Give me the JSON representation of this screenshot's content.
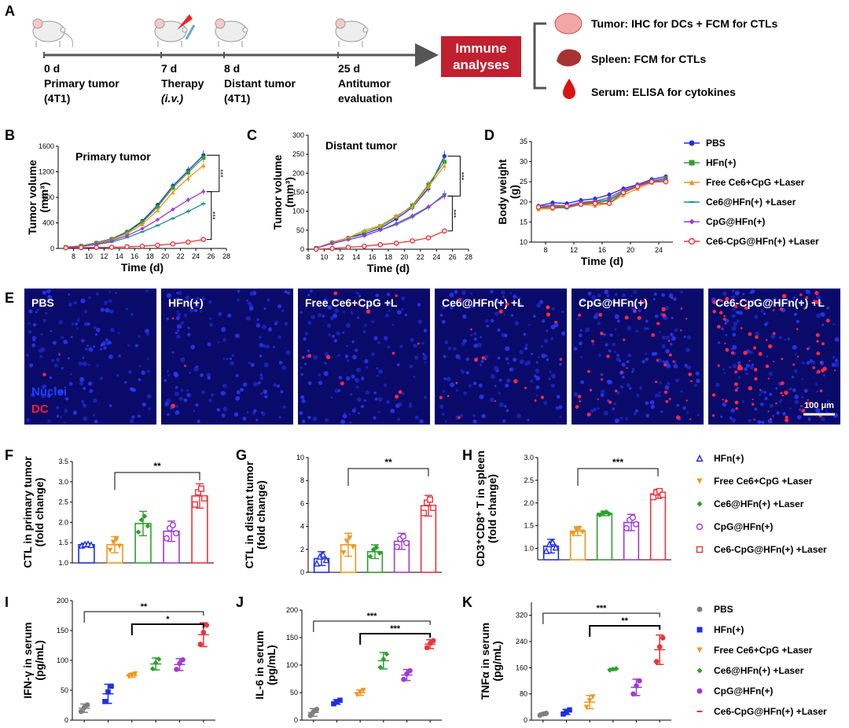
{
  "panels": {
    "A": "A",
    "B": "B",
    "C": "C",
    "D": "D",
    "E": "E",
    "F": "F",
    "G": "G",
    "H": "H",
    "I": "I",
    "J": "J",
    "K": "K"
  },
  "timeline": {
    "points": [
      {
        "day": "0 d",
        "line1": "Primary tumor",
        "line2": "(4T1)"
      },
      {
        "day": "7 d",
        "line1": "Therapy",
        "line2": "(i.v.)"
      },
      {
        "day": "8 d",
        "line1": "Distant tumor",
        "line2": "(4T1)"
      },
      {
        "day": "25 d",
        "line1": "Antitumor",
        "line2": "evaluation"
      }
    ],
    "box_line1": "Immune",
    "box_line2": "analyses",
    "box_color": "#c0202f",
    "analyses": [
      {
        "organ": "tumor",
        "text": "Tumor: IHC for DCs + FCM for CTLs"
      },
      {
        "organ": "spleen",
        "text": "Spleen: FCM for CTLs"
      },
      {
        "organ": "serum",
        "text": "Serum: ELISA for cytokines"
      }
    ]
  },
  "legend_top": [
    {
      "label": "PBS",
      "color": "#1f2ee0",
      "marker": "circle"
    },
    {
      "label": "HFn(+)",
      "color": "#2ca02c",
      "marker": "square"
    },
    {
      "label": "Free Ce6+CpG +Laser",
      "color": "#f0961e",
      "marker": "triangle"
    },
    {
      "label": "Ce6@HFn(+) +Laser",
      "color": "#1f8f8f",
      "marker": "dash"
    },
    {
      "label": "CpG@HFn(+)",
      "color": "#a03ad4",
      "marker": "diamond"
    },
    {
      "label": "Ce6-CpG@HFn(+) +Laser",
      "color": "#e8343c",
      "marker": "open-circle"
    }
  ],
  "microscopy": {
    "labels": [
      "PBS",
      "HFn(+)",
      "Free Ce6+CpG +L",
      "Ce6@HFn(+) +L",
      "CpG@HFn(+)",
      "Ce6-CpG@HFn(+) +L"
    ],
    "stain1": "Nuclei",
    "stain2": "DC",
    "scale": "100 μm"
  },
  "legend_fgh": [
    {
      "label": "HFn(+)",
      "color": "#1f2ee0",
      "marker": "open-triangle"
    },
    {
      "label": "Free Ce6+CpG +Laser",
      "color": "#f0961e",
      "marker": "down-triangle"
    },
    {
      "label": "Ce6@HFn(+) +Laser",
      "color": "#2ca02c",
      "marker": "diamond"
    },
    {
      "label": "CpG@HFn(+)",
      "color": "#a03ad4",
      "marker": "open-circle"
    },
    {
      "label": "Ce6-CpG@HFn(+) +Laser",
      "color": "#e8343c",
      "marker": "open-square"
    }
  ],
  "legend_ijk": [
    {
      "label": "PBS",
      "color": "#7f7f7f",
      "marker": "dot"
    },
    {
      "label": "HFn(+)",
      "color": "#1f2ee0",
      "marker": "square"
    },
    {
      "label": "Free Ce6+CpG +Laser",
      "color": "#f0961e",
      "marker": "down-triangle"
    },
    {
      "label": "Ce6@HFn(+) +Laser",
      "color": "#2ca02c",
      "marker": "diamond"
    },
    {
      "label": "CpG@HFn(+)",
      "color": "#a03ad4",
      "marker": "dot"
    },
    {
      "label": "Ce6-CpG@HFn(+) +Laser",
      "color": "#e8343c",
      "marker": "dash"
    }
  ],
  "chart_data": [
    {
      "id": "B",
      "type": "line",
      "title": "Primary tumor",
      "xlabel": "Time (d)",
      "ylabel": "Tumor volume (mm³)",
      "xlim": [
        6,
        28
      ],
      "ylim": [
        0,
        1600
      ],
      "xticks": [
        8,
        10,
        12,
        14,
        16,
        18,
        20,
        22,
        24,
        26,
        28
      ],
      "yticks": [
        0,
        400,
        800,
        1200,
        1600
      ],
      "x": [
        7,
        9,
        11,
        13,
        15,
        17,
        19,
        21,
        23,
        25
      ],
      "series": [
        {
          "name": "PBS",
          "values": [
            20,
            40,
            90,
            150,
            260,
            430,
            680,
            980,
            1220,
            1460
          ]
        },
        {
          "name": "HFn(+)",
          "values": [
            20,
            38,
            85,
            145,
            250,
            410,
            650,
            950,
            1190,
            1420
          ]
        },
        {
          "name": "Free Ce6+CpG +Laser",
          "values": [
            20,
            36,
            80,
            135,
            230,
            380,
            600,
            880,
            1100,
            1300
          ]
        },
        {
          "name": "Ce6@HFn(+) +Laser",
          "values": [
            18,
            30,
            60,
            100,
            170,
            260,
            360,
            470,
            580,
            700
          ]
        },
        {
          "name": "CpG@HFn(+)",
          "values": [
            18,
            32,
            70,
            120,
            200,
            310,
            450,
            610,
            760,
            890
          ]
        },
        {
          "name": "Ce6-CpG@HFn(+) +Laser",
          "values": [
            10,
            12,
            15,
            18,
            25,
            35,
            50,
            70,
            100,
            140
          ]
        }
      ],
      "significance": [
        "***",
        "***"
      ]
    },
    {
      "id": "C",
      "type": "line",
      "title": "Distant tumor",
      "xlabel": "Time (d)",
      "ylabel": "Tumor volume (mm³)",
      "xlim": [
        8,
        28
      ],
      "ylim": [
        0,
        300
      ],
      "xticks": [
        8,
        10,
        12,
        14,
        16,
        18,
        20,
        22,
        24,
        26,
        28
      ],
      "yticks": [
        0,
        50,
        100,
        150,
        200,
        250,
        300
      ],
      "x": [
        9,
        11,
        13,
        15,
        17,
        19,
        21,
        23,
        25
      ],
      "series": [
        {
          "name": "PBS",
          "values": [
            3,
            18,
            30,
            40,
            55,
            80,
            110,
            160,
            245
          ]
        },
        {
          "name": "HFn(+)",
          "values": [
            3,
            17,
            29,
            45,
            60,
            85,
            115,
            170,
            230
          ]
        },
        {
          "name": "Free Ce6+CpG +Laser",
          "values": [
            3,
            17,
            30,
            50,
            62,
            88,
            112,
            165,
            220
          ]
        },
        {
          "name": "Ce6@HFn(+) +Laser",
          "values": [
            3,
            15,
            25,
            35,
            50,
            65,
            85,
            110,
            145
          ]
        },
        {
          "name": "CpG@HFn(+)",
          "values": [
            3,
            15,
            25,
            35,
            50,
            68,
            88,
            112,
            140
          ]
        },
        {
          "name": "Ce6-CpG@HFn(+) +Laser",
          "values": [
            0,
            2,
            5,
            8,
            12,
            16,
            22,
            30,
            48
          ]
        }
      ],
      "significance": [
        "***",
        "***"
      ]
    },
    {
      "id": "D",
      "type": "line",
      "xlabel": "Time (d)",
      "ylabel": "Body weight (g)",
      "xlim": [
        6,
        26
      ],
      "ylim": [
        10,
        35
      ],
      "xticks": [
        8,
        12,
        16,
        20,
        24
      ],
      "yticks": [
        10,
        15,
        20,
        25,
        30,
        35
      ],
      "x": [
        7,
        9,
        11,
        13,
        15,
        17,
        19,
        21,
        23,
        25
      ],
      "series": [
        {
          "name": "PBS",
          "values": [
            19.0,
            19.8,
            19.6,
            20.4,
            20.8,
            21.8,
            23.3,
            24.3,
            25.6,
            26.3
          ]
        },
        {
          "name": "HFn(+)",
          "values": [
            18.6,
            19.0,
            18.7,
            19.6,
            20.0,
            20.6,
            22.6,
            24.0,
            25.2,
            25.9
          ]
        },
        {
          "name": "Free Ce6+CpG +Laser",
          "values": [
            18.2,
            18.3,
            18.8,
            19.3,
            19.1,
            19.6,
            21.7,
            23.3,
            24.8,
            25.2
          ]
        },
        {
          "name": "Ce6@HFn(+) +Laser",
          "values": [
            18.5,
            18.6,
            18.5,
            19.4,
            19.7,
            20.3,
            22.3,
            23.8,
            25.0,
            25.5
          ]
        },
        {
          "name": "CpG@HFn(+)",
          "values": [
            18.9,
            19.2,
            19.0,
            19.9,
            20.2,
            21.1,
            22.9,
            24.1,
            25.3,
            25.8
          ]
        },
        {
          "name": "Ce6-CpG@HFn(+) +Laser",
          "values": [
            18.7,
            18.6,
            18.9,
            19.4,
            19.6,
            19.6,
            22.3,
            23.8,
            25.0,
            25.0
          ]
        }
      ]
    },
    {
      "id": "F",
      "type": "bar",
      "ylabel": "CTL in primary tumor (fold change)",
      "ylim": [
        1.0,
        3.5
      ],
      "yticks": [
        1.0,
        1.5,
        2.0,
        2.5,
        3.0,
        3.5
      ],
      "categories": [
        "HFn(+)",
        "Free Ce6+CpG +Laser",
        "Ce6@HFn(+) +Laser",
        "CpG@HFn(+)",
        "Ce6-CpG@HFn(+) +Laser"
      ],
      "values": [
        1.45,
        1.45,
        1.97,
        1.78,
        2.65
      ],
      "errors": [
        0.03,
        0.2,
        0.3,
        0.25,
        0.3
      ],
      "significance": "**"
    },
    {
      "id": "G",
      "type": "bar",
      "ylabel": "CTL in distant tumor (fold change)",
      "ylim": [
        0,
        10
      ],
      "yticks": [
        0,
        2,
        4,
        6,
        8,
        10
      ],
      "categories": [
        "HFn(+)",
        "Free Ce6+CpG +Laser",
        "Ce6@HFn(+) +Laser",
        "CpG@HFn(+)",
        "Ce6-CpG@HFn(+) +Laser"
      ],
      "values": [
        1.2,
        2.4,
        1.8,
        2.7,
        5.8
      ],
      "errors": [
        0.6,
        1.0,
        0.6,
        0.7,
        0.9
      ],
      "significance": "**"
    },
    {
      "id": "H",
      "type": "bar",
      "ylabel": "CD3⁺CD8⁺ T in spleen (fold change)",
      "ylim": [
        0.75,
        3.0
      ],
      "yticks": [
        1.0,
        1.5,
        2.0,
        2.5,
        3.0
      ],
      "categories": [
        "HFn(+)",
        "Free Ce6+CpG +Laser",
        "Ce6@HFn(+) +Laser",
        "CpG@HFn(+)",
        "Ce6-CpG@HFn(+) +Laser"
      ],
      "values": [
        1.05,
        1.38,
        1.77,
        1.57,
        2.2
      ],
      "errors": [
        0.15,
        0.1,
        0.05,
        0.18,
        0.1
      ],
      "significance": "***"
    },
    {
      "id": "I",
      "type": "scatter",
      "ylabel": "IFN-γ in serum (pg/mL)",
      "ylim": [
        0,
        200
      ],
      "yticks": [
        0,
        50,
        100,
        150,
        200
      ],
      "categories": [
        "PBS",
        "HFn(+)",
        "Free Ce6+CpG +Laser",
        "Ce6@HFn(+) +Laser",
        "CpG@HFn(+)",
        "Ce6-CpG@HFn(+) +Laser"
      ],
      "values": [
        20,
        44,
        75,
        94,
        93,
        143
      ],
      "errors": [
        7,
        16,
        3,
        10,
        10,
        20
      ],
      "significance": [
        "**",
        "*"
      ]
    },
    {
      "id": "J",
      "type": "scatter",
      "ylabel": "IL-6 in serum (pg/mL)",
      "ylim": [
        0,
        200
      ],
      "yticks": [
        0,
        50,
        100,
        150,
        200
      ],
      "categories": [
        "PBS",
        "HFn(+)",
        "Free Ce6+CpG +Laser",
        "Ce6@HFn(+) +Laser",
        "CpG@HFn(+)",
        "Ce6-CpG@HFn(+) +Laser"
      ],
      "values": [
        14,
        33,
        50,
        108,
        82,
        138
      ],
      "errors": [
        7,
        4,
        5,
        15,
        10,
        8
      ],
      "significance": [
        "***",
        "***"
      ]
    },
    {
      "id": "K",
      "type": "scatter",
      "ylabel": "TNFα in serum (pg/mL)",
      "ylim": [
        0,
        360
      ],
      "yticks": [
        0,
        80,
        160,
        240,
        320
      ],
      "categories": [
        "PBS",
        "HFn(+)",
        "Free Ce6+CpG +Laser",
        "Ce6@HFn(+) +Laser",
        "CpG@HFn(+)",
        "Ce6-CpG@HFn(+) +Laser"
      ],
      "values": [
        18,
        25,
        55,
        155,
        100,
        215
      ],
      "errors": [
        4,
        8,
        20,
        3,
        25,
        45
      ],
      "significance": [
        "***",
        "**"
      ]
    }
  ]
}
